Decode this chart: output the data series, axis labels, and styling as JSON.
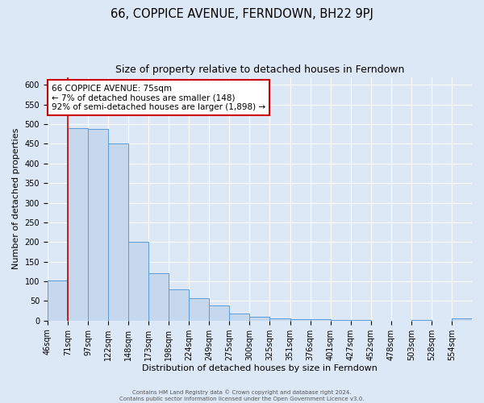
{
  "title": "66, COPPICE AVENUE, FERNDOWN, BH22 9PJ",
  "subtitle": "Size of property relative to detached houses in Ferndown",
  "xlabel": "Distribution of detached houses by size in Ferndown",
  "ylabel": "Number of detached properties",
  "bin_labels": [
    "46sqm",
    "71sqm",
    "97sqm",
    "122sqm",
    "148sqm",
    "173sqm",
    "198sqm",
    "224sqm",
    "249sqm",
    "275sqm",
    "300sqm",
    "325sqm",
    "351sqm",
    "376sqm",
    "401sqm",
    "427sqm",
    "452sqm",
    "478sqm",
    "503sqm",
    "528sqm",
    "554sqm"
  ],
  "bar_heights": [
    103,
    490,
    487,
    450,
    200,
    121,
    80,
    57,
    38,
    17,
    10,
    5,
    3,
    3,
    1,
    1,
    0,
    0,
    1,
    0,
    5
  ],
  "bar_color": "#c5d8ed",
  "bar_edge_color": "#5b9bd5",
  "vline_x": 1,
  "vline_color": "#cc0000",
  "ylim": [
    0,
    620
  ],
  "yticks": [
    0,
    50,
    100,
    150,
    200,
    250,
    300,
    350,
    400,
    450,
    500,
    550,
    600
  ],
  "annotation_title": "66 COPPICE AVENUE: 75sqm",
  "annotation_line1": "← 7% of detached houses are smaller (148)",
  "annotation_line2": "92% of semi-detached houses are larger (1,898) →",
  "annotation_box_color": "#ffffff",
  "annotation_box_edge": "#cc0000",
  "footer_line1": "Contains HM Land Registry data © Crown copyright and database right 2024.",
  "footer_line2": "Contains public sector information licensed under the Open Government Licence v3.0.",
  "bg_color": "#dce8f5",
  "plot_bg_color": "#dce8f5",
  "grid_color": "#ffffff",
  "title_fontsize": 10.5,
  "subtitle_fontsize": 9,
  "label_fontsize": 8,
  "tick_fontsize": 7,
  "annot_fontsize": 7.5,
  "footer_fontsize": 5
}
